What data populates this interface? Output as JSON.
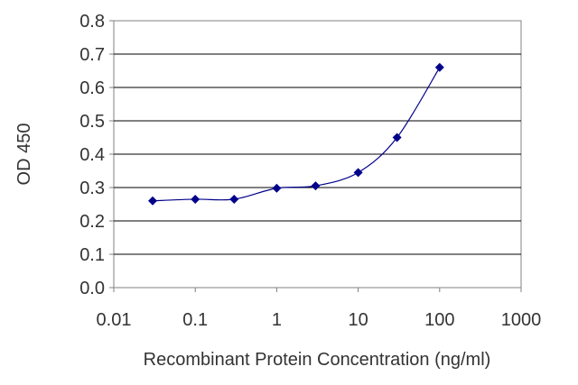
{
  "chart_data": {
    "type": "scatter",
    "title": "",
    "xlabel": "Recombinant Protein Concentration (ng/ml)",
    "ylabel": "OD 450",
    "xscale": "log",
    "xlim": [
      0.01,
      1000
    ],
    "ylim": [
      0,
      0.8
    ],
    "x_ticks": [
      "0.01",
      "0.1",
      "1",
      "10",
      "100",
      "1000"
    ],
    "y_ticks": [
      "0.0",
      "0.1",
      "0.2",
      "0.3",
      "0.4",
      "0.5",
      "0.6",
      "0.7",
      "0.8"
    ],
    "grid": "horizontal",
    "legend": "none",
    "series": [
      {
        "color": "#00008b",
        "marker": "diamond",
        "line": "smoothed",
        "x": [
          0.03,
          0.1,
          0.3,
          1,
          3,
          10,
          30,
          100
        ],
        "y": [
          0.26,
          0.265,
          0.265,
          0.298,
          0.305,
          0.345,
          0.45,
          0.66
        ]
      }
    ]
  }
}
